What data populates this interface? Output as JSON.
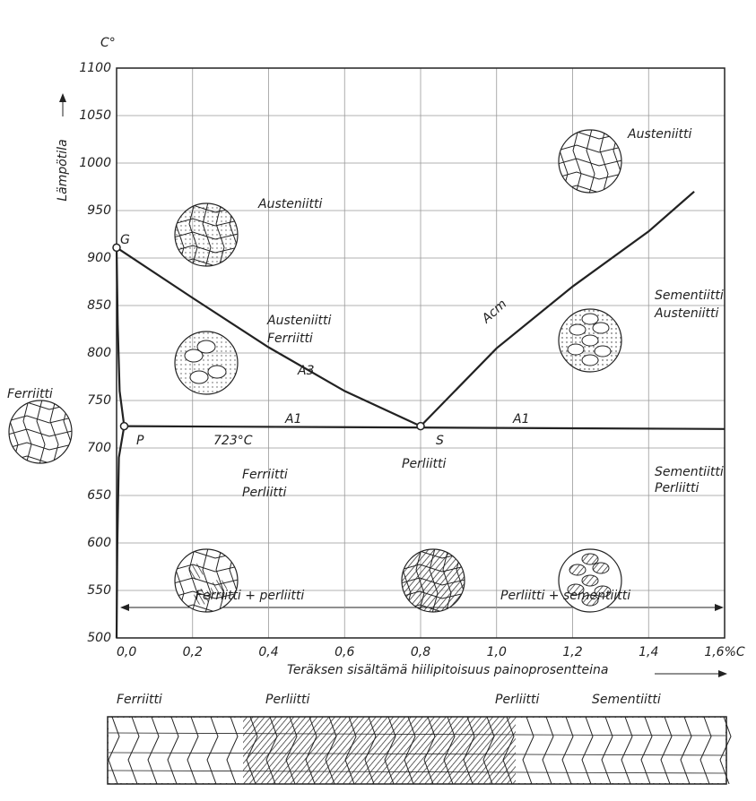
{
  "chart_data": {
    "type": "line",
    "y_unit": "C°",
    "y_label": "Lämpötila",
    "x_label": "Teräksen sisältämä hiilipitoisuus painoprosentteina",
    "xlim": [
      0,
      1.6
    ],
    "ylim": [
      500,
      1100
    ],
    "xticks": [
      {
        "value": 0,
        "label": "0,0"
      },
      {
        "value": 0.2,
        "label": "0,2"
      },
      {
        "value": 0.4,
        "label": "0,4"
      },
      {
        "value": 0.6,
        "label": "0,6"
      },
      {
        "value": 0.8,
        "label": "0,8"
      },
      {
        "value": 1.0,
        "label": "1,0"
      },
      {
        "value": 1.2,
        "label": "1,2"
      },
      {
        "value": 1.4,
        "label": "1,4"
      },
      {
        "value": 1.6,
        "label": "1,6%C"
      }
    ],
    "yticks": [
      500,
      550,
      600,
      650,
      700,
      750,
      800,
      850,
      900,
      950,
      1000,
      1050,
      1100
    ],
    "grid": true,
    "color": "#222222",
    "series": [
      {
        "name": "A3",
        "x": [
          0,
          0.2,
          0.4,
          0.6,
          0.8
        ],
        "values": [
          911,
          858,
          806,
          760,
          723
        ]
      },
      {
        "name": "Acm",
        "x": [
          0.8,
          1.0,
          1.2,
          1.4,
          1.52
        ],
        "values": [
          723,
          805,
          870,
          928,
          970
        ]
      },
      {
        "name": "A1",
        "x": [
          0.02,
          1.6
        ],
        "values": [
          723,
          720
        ]
      },
      {
        "x": [
          0,
          0.003,
          0.008,
          0.02
        ],
        "values": [
          911,
          830,
          760,
          723
        ]
      },
      {
        "x": [
          0.02,
          0.006,
          0.002,
          0
        ],
        "values": [
          723,
          690,
          600,
          500
        ]
      }
    ],
    "annotations": [
      "G",
      "P",
      "S",
      "723°C",
      "A1",
      "A1",
      "Acm",
      "Austeniitti",
      "Austeniitti",
      "Austeniitti",
      "Ferriitti",
      "Sementiitti",
      "Austeniitti",
      "Ferriitti",
      "Ferriitti",
      "Perliitti",
      "Perliitti",
      "Sementiitti",
      "Perliitti",
      "Ferriitti + perliitti",
      "Perliitti + sementiitti",
      "Ferriitti",
      "Perliitti",
      "Perliitti",
      "Sementiitti"
    ]
  }
}
